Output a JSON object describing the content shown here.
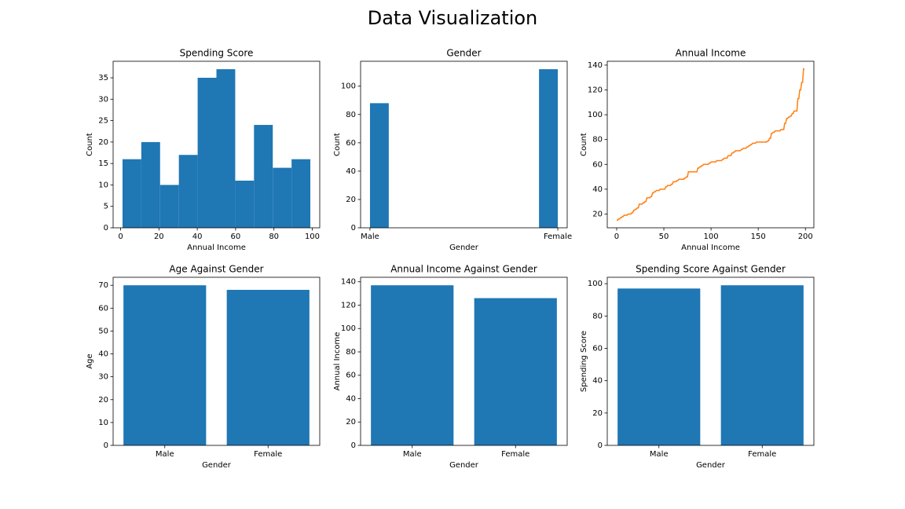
{
  "title": "Data Visualization",
  "chart_data": [
    {
      "type": "histogram",
      "title": "Spending Score",
      "x_label": "Annual Income",
      "y_label": "Count",
      "color": "#1f77b4",
      "bins": [
        1,
        10.8,
        20.6,
        30.4,
        40.2,
        50,
        59.8,
        69.6,
        79.4,
        89.2,
        99
      ],
      "values": [
        16,
        20,
        10,
        17,
        35,
        37,
        11,
        24,
        14,
        16
      ],
      "xlim": [
        -3.9,
        103.9
      ],
      "xticks": [
        0,
        20,
        40,
        60,
        80,
        100
      ],
      "ylim": [
        0,
        38.85
      ],
      "yticks": [
        0,
        5,
        10,
        15,
        20,
        25,
        30,
        35
      ]
    },
    {
      "type": "histogram",
      "title": "Gender",
      "x_label": "Gender",
      "y_label": "Count",
      "color": "#1f77b4",
      "bins": [
        0,
        0.1,
        0.2,
        0.3,
        0.4,
        0.5,
        0.6,
        0.7,
        0.8,
        0.9,
        1
      ],
      "values": [
        88,
        0,
        0,
        0,
        0,
        0,
        0,
        0,
        0,
        112
      ],
      "xlim": [
        -0.05,
        1.05
      ],
      "xticks": [
        {
          "value": 0,
          "label": "Male"
        },
        {
          "value": 1,
          "label": "Female"
        }
      ],
      "ylim": [
        0,
        117.6
      ],
      "yticks": [
        0,
        20,
        40,
        60,
        80,
        100
      ]
    },
    {
      "type": "line",
      "title": "Annual Income",
      "x_label": "Annual Income",
      "y_label": "Count",
      "color": "#ff7f0e",
      "x": [
        0,
        1,
        2,
        3,
        4,
        5,
        6,
        7,
        8,
        9,
        10,
        11,
        12,
        13,
        14,
        15,
        16,
        17,
        18,
        19,
        20,
        21,
        22,
        23,
        24,
        25,
        26,
        27,
        28,
        29,
        30,
        31,
        32,
        33,
        34,
        35,
        36,
        37,
        38,
        39,
        40,
        41,
        42,
        43,
        44,
        45,
        46,
        47,
        48,
        49,
        50,
        51,
        52,
        53,
        54,
        55,
        56,
        57,
        58,
        59,
        60,
        61,
        62,
        63,
        64,
        65,
        66,
        67,
        68,
        69,
        70,
        71,
        72,
        73,
        74,
        75,
        76,
        77,
        78,
        79,
        80,
        81,
        82,
        83,
        84,
        85,
        86,
        87,
        88,
        89,
        90,
        91,
        92,
        93,
        94,
        95,
        96,
        97,
        98,
        99,
        100,
        101,
        102,
        103,
        104,
        105,
        106,
        107,
        108,
        109,
        110,
        111,
        112,
        113,
        114,
        115,
        116,
        117,
        118,
        119,
        120,
        121,
        122,
        123,
        124,
        125,
        126,
        127,
        128,
        129,
        130,
        131,
        132,
        133,
        134,
        135,
        136,
        137,
        138,
        139,
        140,
        141,
        142,
        143,
        144,
        145,
        146,
        147,
        148,
        149,
        150,
        151,
        152,
        153,
        154,
        155,
        156,
        157,
        158,
        159,
        160,
        161,
        162,
        163,
        164,
        165,
        166,
        167,
        168,
        169,
        170,
        171,
        172,
        173,
        174,
        175,
        176,
        177,
        178,
        179,
        180,
        181,
        182,
        183,
        184,
        185,
        186,
        187,
        188,
        189,
        190,
        191,
        192,
        193,
        194,
        195,
        196,
        197,
        198,
        199
      ],
      "values": [
        15,
        15,
        16,
        16,
        17,
        17,
        18,
        18,
        19,
        19,
        19,
        19,
        20,
        20,
        20,
        20,
        21,
        21,
        23,
        23,
        24,
        24,
        25,
        25,
        28,
        28,
        28,
        28,
        29,
        29,
        30,
        30,
        33,
        33,
        33,
        33,
        34,
        34,
        37,
        37,
        38,
        38,
        39,
        39,
        39,
        39,
        40,
        40,
        40,
        40,
        40,
        40,
        42,
        42,
        43,
        43,
        43,
        43,
        44,
        44,
        46,
        46,
        46,
        46,
        47,
        47,
        48,
        48,
        48,
        48,
        48,
        48,
        49,
        49,
        50,
        50,
        54,
        54,
        54,
        54,
        54,
        54,
        54,
        54,
        54,
        54,
        57,
        57,
        58,
        58,
        59,
        59,
        60,
        60,
        60,
        60,
        60,
        60,
        61,
        61,
        62,
        62,
        62,
        62,
        62,
        62,
        63,
        63,
        63,
        63,
        63,
        63,
        64,
        64,
        65,
        65,
        65,
        65,
        67,
        67,
        67,
        67,
        69,
        69,
        70,
        70,
        71,
        71,
        71,
        71,
        71,
        71,
        72,
        72,
        73,
        73,
        73,
        73,
        74,
        74,
        75,
        75,
        76,
        76,
        77,
        77,
        77,
        77,
        78,
        78,
        78,
        78,
        78,
        78,
        78,
        78,
        78,
        78,
        78,
        78,
        79,
        79,
        81,
        81,
        85,
        85,
        86,
        86,
        87,
        87,
        87,
        87,
        87,
        87,
        88,
        88,
        88,
        88,
        93,
        93,
        97,
        97,
        98,
        98,
        99,
        99,
        101,
        101,
        103,
        103,
        103,
        103,
        113,
        113,
        120,
        120,
        126,
        126,
        137,
        137
      ],
      "xlim": [
        -9.95,
        208.95
      ],
      "xticks": [
        0,
        50,
        100,
        150,
        200
      ],
      "ylim": [
        8.9,
        143.1
      ],
      "yticks": [
        20,
        40,
        60,
        80,
        100,
        120,
        140
      ]
    },
    {
      "type": "bar",
      "title": "Age Against Gender",
      "x_label": "Gender",
      "y_label": "Age",
      "color": "#1f77b4",
      "categories": [
        "Male",
        "Female"
      ],
      "values": [
        70,
        68
      ],
      "ylim": [
        0,
        73.5
      ],
      "yticks": [
        0,
        10,
        20,
        30,
        40,
        50,
        60,
        70
      ]
    },
    {
      "type": "bar",
      "title": "Annual Income Against Gender",
      "x_label": "Gender",
      "y_label": "Annual Income",
      "color": "#1f77b4",
      "categories": [
        "Male",
        "Female"
      ],
      "values": [
        137,
        126
      ],
      "ylim": [
        0,
        143.85
      ],
      "yticks": [
        0,
        20,
        40,
        60,
        80,
        100,
        120,
        140
      ]
    },
    {
      "type": "bar",
      "title": "Spending Score Against Gender",
      "x_label": "Gender",
      "y_label": "Spending Score",
      "color": "#1f77b4",
      "categories": [
        "Male",
        "Female"
      ],
      "values": [
        97,
        99
      ],
      "ylim": [
        0,
        103.95
      ],
      "yticks": [
        0,
        20,
        40,
        60,
        80,
        100
      ]
    }
  ]
}
